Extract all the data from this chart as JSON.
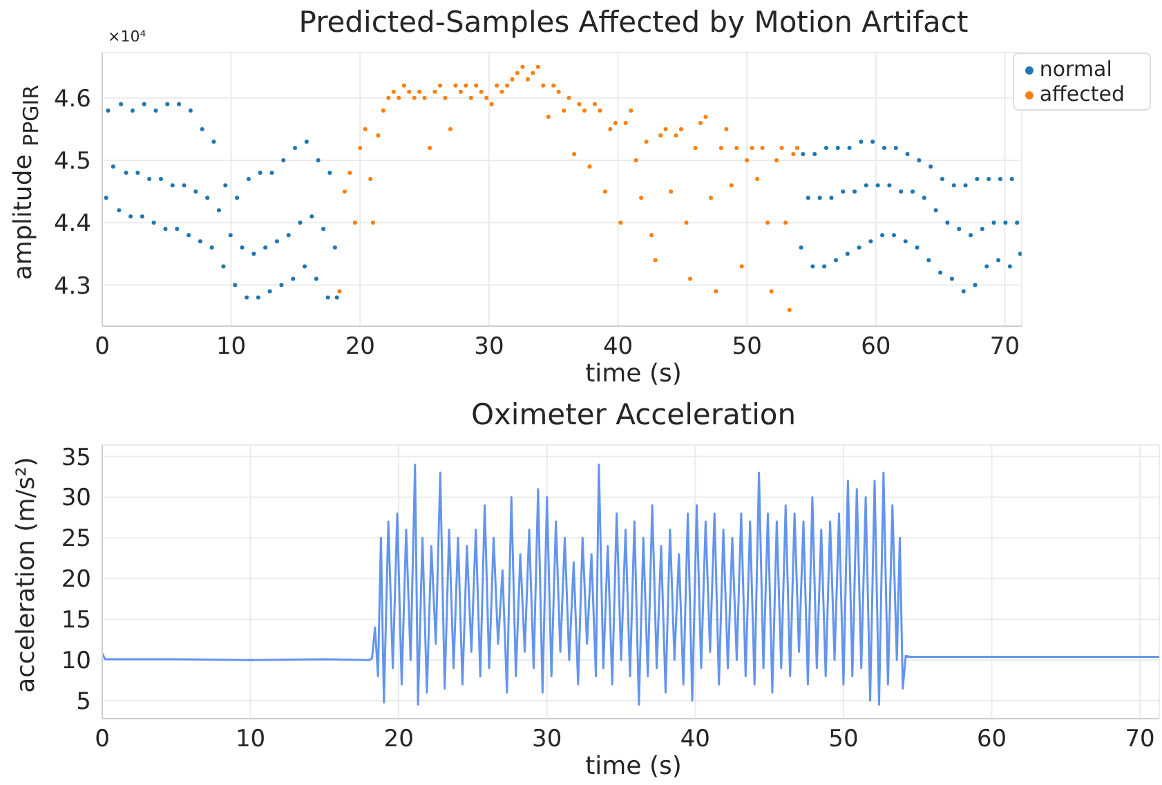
{
  "chart_data": [
    {
      "type": "scatter",
      "title": "Predicted-Samples Affected by Motion Artifact",
      "xlabel": "time (s)",
      "ylabel": "amplitude $_{PPGIR}$",
      "annotations": [
        "×10⁴"
      ],
      "xlim": [
        0,
        71.3
      ],
      "xticks": [
        0,
        10,
        20,
        30,
        40,
        50,
        60,
        70
      ],
      "ylim": [
        4.234,
        4.673
      ],
      "yticks": [
        4.3,
        4.4,
        4.5,
        4.6
      ],
      "grid": true,
      "legend": "top right",
      "marker": "circle",
      "series": [
        {
          "name": "normal",
          "color": "#1f77b4",
          "x": [
            0.3,
            0.45,
            0.85,
            1.3,
            1.45,
            1.85,
            2.2,
            2.35,
            2.75,
            3.1,
            3.25,
            3.65,
            4.0,
            4.15,
            4.55,
            4.9,
            5.05,
            5.45,
            5.8,
            5.95,
            6.35,
            6.7,
            6.85,
            7.25,
            7.6,
            7.75,
            8.15,
            8.5,
            8.65,
            9.05,
            9.4,
            9.55,
            9.95,
            10.3,
            10.45,
            10.85,
            11.2,
            11.35,
            11.75,
            12.1,
            12.25,
            12.65,
            13.0,
            13.15,
            13.55,
            13.9,
            14.05,
            14.45,
            14.8,
            14.95,
            15.35,
            15.7,
            15.85,
            16.25,
            16.6,
            16.75,
            17.15,
            17.5,
            17.65,
            18.05,
            18.2,
            54.2,
            54.35,
            54.75,
            55.1,
            55.25,
            55.65,
            56.0,
            56.15,
            56.55,
            56.9,
            57.05,
            57.45,
            57.8,
            57.95,
            58.35,
            58.7,
            58.85,
            59.25,
            59.6,
            59.75,
            60.15,
            60.5,
            60.65,
            61.05,
            61.4,
            61.55,
            61.95,
            62.3,
            62.45,
            62.85,
            63.2,
            63.35,
            63.75,
            64.1,
            64.25,
            64.65,
            65.0,
            65.15,
            65.55,
            65.9,
            66.05,
            66.45,
            66.8,
            66.95,
            67.35,
            67.7,
            67.85,
            68.25,
            68.6,
            68.75,
            69.15,
            69.5,
            69.65,
            70.05,
            70.4,
            70.55,
            70.95,
            71.2
          ],
          "values": [
            4.44,
            4.58,
            4.49,
            4.42,
            4.59,
            4.48,
            4.41,
            4.58,
            4.48,
            4.41,
            4.59,
            4.47,
            4.4,
            4.58,
            4.47,
            4.39,
            4.59,
            4.46,
            4.39,
            4.59,
            4.46,
            4.38,
            4.58,
            4.45,
            4.37,
            4.55,
            4.44,
            4.36,
            4.53,
            4.42,
            4.33,
            4.46,
            4.38,
            4.3,
            4.44,
            4.36,
            4.28,
            4.47,
            4.35,
            4.28,
            4.48,
            4.36,
            4.29,
            4.48,
            4.37,
            4.3,
            4.5,
            4.38,
            4.31,
            4.52,
            4.4,
            4.33,
            4.53,
            4.41,
            4.31,
            4.5,
            4.39,
            4.28,
            4.48,
            4.36,
            4.28,
            4.36,
            4.51,
            4.44,
            4.33,
            4.51,
            4.44,
            4.33,
            4.52,
            4.44,
            4.34,
            4.52,
            4.45,
            4.35,
            4.52,
            4.45,
            4.36,
            4.53,
            4.46,
            4.37,
            4.53,
            4.46,
            4.38,
            4.52,
            4.46,
            4.38,
            4.52,
            4.45,
            4.37,
            4.51,
            4.45,
            4.36,
            4.5,
            4.44,
            4.34,
            4.49,
            4.42,
            4.32,
            4.47,
            4.4,
            4.31,
            4.46,
            4.39,
            4.29,
            4.46,
            4.38,
            4.3,
            4.47,
            4.39,
            4.33,
            4.47,
            4.4,
            4.34,
            4.47,
            4.4,
            4.33,
            4.47,
            4.4,
            4.35
          ]
        },
        {
          "name": "affected",
          "color": "#ff7f0e",
          "x": [
            18.4,
            18.8,
            19.2,
            19.6,
            20.0,
            20.4,
            20.8,
            21.0,
            21.4,
            21.8,
            22.2,
            22.6,
            23.0,
            23.4,
            23.8,
            24.2,
            24.6,
            25.0,
            25.4,
            25.8,
            26.2,
            26.6,
            27.0,
            27.4,
            27.8,
            28.2,
            28.6,
            29.0,
            29.4,
            29.8,
            30.2,
            30.6,
            31.0,
            31.4,
            31.8,
            32.2,
            32.6,
            33.0,
            33.4,
            33.8,
            34.2,
            34.6,
            35.0,
            35.4,
            35.8,
            36.2,
            36.6,
            37.0,
            37.4,
            37.8,
            38.2,
            38.6,
            39.0,
            39.4,
            39.8,
            40.2,
            40.6,
            41.0,
            41.4,
            41.8,
            42.2,
            42.6,
            42.9,
            43.3,
            43.7,
            44.1,
            44.5,
            44.9,
            45.3,
            45.6,
            46.0,
            46.4,
            46.8,
            47.2,
            47.6,
            48.0,
            48.4,
            48.8,
            49.2,
            49.6,
            50.0,
            50.4,
            50.8,
            51.2,
            51.6,
            51.9,
            52.3,
            52.7,
            53.0,
            53.3,
            53.6,
            53.9
          ],
          "values": [
            4.29,
            4.45,
            4.48,
            4.4,
            4.52,
            4.55,
            4.47,
            4.4,
            4.54,
            4.58,
            4.6,
            4.61,
            4.6,
            4.62,
            4.61,
            4.6,
            4.61,
            4.6,
            4.52,
            4.61,
            4.62,
            4.6,
            4.55,
            4.62,
            4.61,
            4.62,
            4.6,
            4.62,
            4.61,
            4.6,
            4.59,
            4.62,
            4.61,
            4.62,
            4.63,
            4.64,
            4.65,
            4.63,
            4.64,
            4.65,
            4.62,
            4.57,
            4.62,
            4.61,
            4.58,
            4.6,
            4.51,
            4.59,
            4.58,
            4.49,
            4.59,
            4.58,
            4.45,
            4.55,
            4.56,
            4.4,
            4.56,
            4.58,
            4.5,
            4.44,
            4.53,
            4.38,
            4.34,
            4.54,
            4.55,
            4.45,
            4.54,
            4.55,
            4.4,
            4.31,
            4.52,
            4.56,
            4.57,
            4.44,
            4.29,
            4.52,
            4.55,
            4.46,
            4.52,
            4.33,
            4.5,
            4.52,
            4.47,
            4.52,
            4.4,
            4.29,
            4.5,
            4.52,
            4.4,
            4.26,
            4.51,
            4.52
          ]
        }
      ]
    },
    {
      "type": "line",
      "title": "Oximeter Acceleration",
      "xlabel": "time (s)",
      "ylabel": "acceleration (m/s²)",
      "xlim": [
        0,
        71.3
      ],
      "xticks": [
        0,
        10,
        20,
        30,
        40,
        50,
        60,
        70
      ],
      "ylim": [
        2.8,
        36.4
      ],
      "yticks": [
        5,
        10,
        15,
        20,
        25,
        30,
        35
      ],
      "grid": true,
      "marker": "none",
      "line_style": "solid",
      "series": [
        {
          "color": "#6495ed",
          "x": [
            0,
            0.2,
            5,
            10,
            15,
            18.0,
            18.2,
            18.4,
            18.6,
            18.8,
            19.0,
            19.3,
            19.6,
            19.9,
            20.2,
            20.5,
            20.8,
            21.1,
            21.3,
            21.6,
            21.9,
            22.2,
            22.5,
            22.8,
            23.1,
            23.4,
            23.7,
            24.0,
            24.3,
            24.6,
            24.9,
            25.2,
            25.5,
            25.8,
            26.1,
            26.4,
            26.7,
            27.0,
            27.3,
            27.6,
            27.9,
            28.2,
            28.5,
            28.8,
            29.1,
            29.4,
            29.7,
            30.0,
            30.3,
            30.6,
            30.9,
            31.2,
            31.5,
            31.8,
            32.1,
            32.4,
            32.7,
            33.0,
            33.3,
            33.5,
            33.8,
            34.1,
            34.4,
            34.7,
            35.0,
            35.3,
            35.6,
            35.9,
            36.2,
            36.5,
            36.8,
            37.1,
            37.4,
            37.7,
            38.0,
            38.3,
            38.6,
            38.9,
            39.2,
            39.5,
            39.8,
            40.1,
            40.4,
            40.7,
            41.0,
            41.3,
            41.6,
            41.9,
            42.2,
            42.5,
            42.8,
            43.1,
            43.4,
            43.7,
            44.0,
            44.3,
            44.6,
            44.9,
            45.2,
            45.5,
            45.8,
            46.1,
            46.4,
            46.7,
            47.0,
            47.3,
            47.6,
            47.9,
            48.2,
            48.5,
            48.8,
            49.1,
            49.4,
            49.7,
            50.0,
            50.3,
            50.6,
            50.9,
            51.2,
            51.5,
            51.8,
            52.1,
            52.4,
            52.7,
            53.0,
            53.3,
            53.6,
            53.8,
            54.0,
            54.2,
            54.5,
            60,
            65,
            71.3
          ],
          "values": [
            10.8,
            10.1,
            10.1,
            10.0,
            10.1,
            10.0,
            10.2,
            14,
            8,
            25,
            4.8,
            27,
            9,
            28,
            7,
            26,
            10,
            34,
            4.5,
            25,
            6,
            24,
            12,
            33,
            6.5,
            26,
            9,
            25,
            7,
            24,
            11,
            26,
            8,
            29,
            9,
            25,
            12,
            21,
            6,
            30,
            8,
            23,
            11,
            26,
            9,
            31,
            6,
            30,
            8,
            27,
            11,
            25,
            10,
            22,
            7,
            25,
            12,
            23,
            8,
            34,
            9,
            24,
            7,
            28,
            10,
            26,
            8,
            27,
            4.5,
            25,
            8,
            29,
            9,
            24,
            6,
            26,
            10,
            23,
            7,
            28,
            5,
            29,
            9,
            27,
            11,
            28,
            7,
            26,
            9,
            25,
            10,
            28,
            8,
            27,
            7,
            33,
            9,
            28,
            6,
            27,
            9,
            29,
            8,
            28,
            11,
            27,
            7,
            30,
            9,
            26,
            8,
            27,
            10,
            28,
            7,
            32,
            8,
            31,
            9,
            30,
            5,
            32,
            4.5,
            33,
            7,
            29,
            10,
            25,
            6.5,
            10.5,
            10.4,
            10.4,
            10.4,
            10.4
          ]
        }
      ]
    }
  ]
}
